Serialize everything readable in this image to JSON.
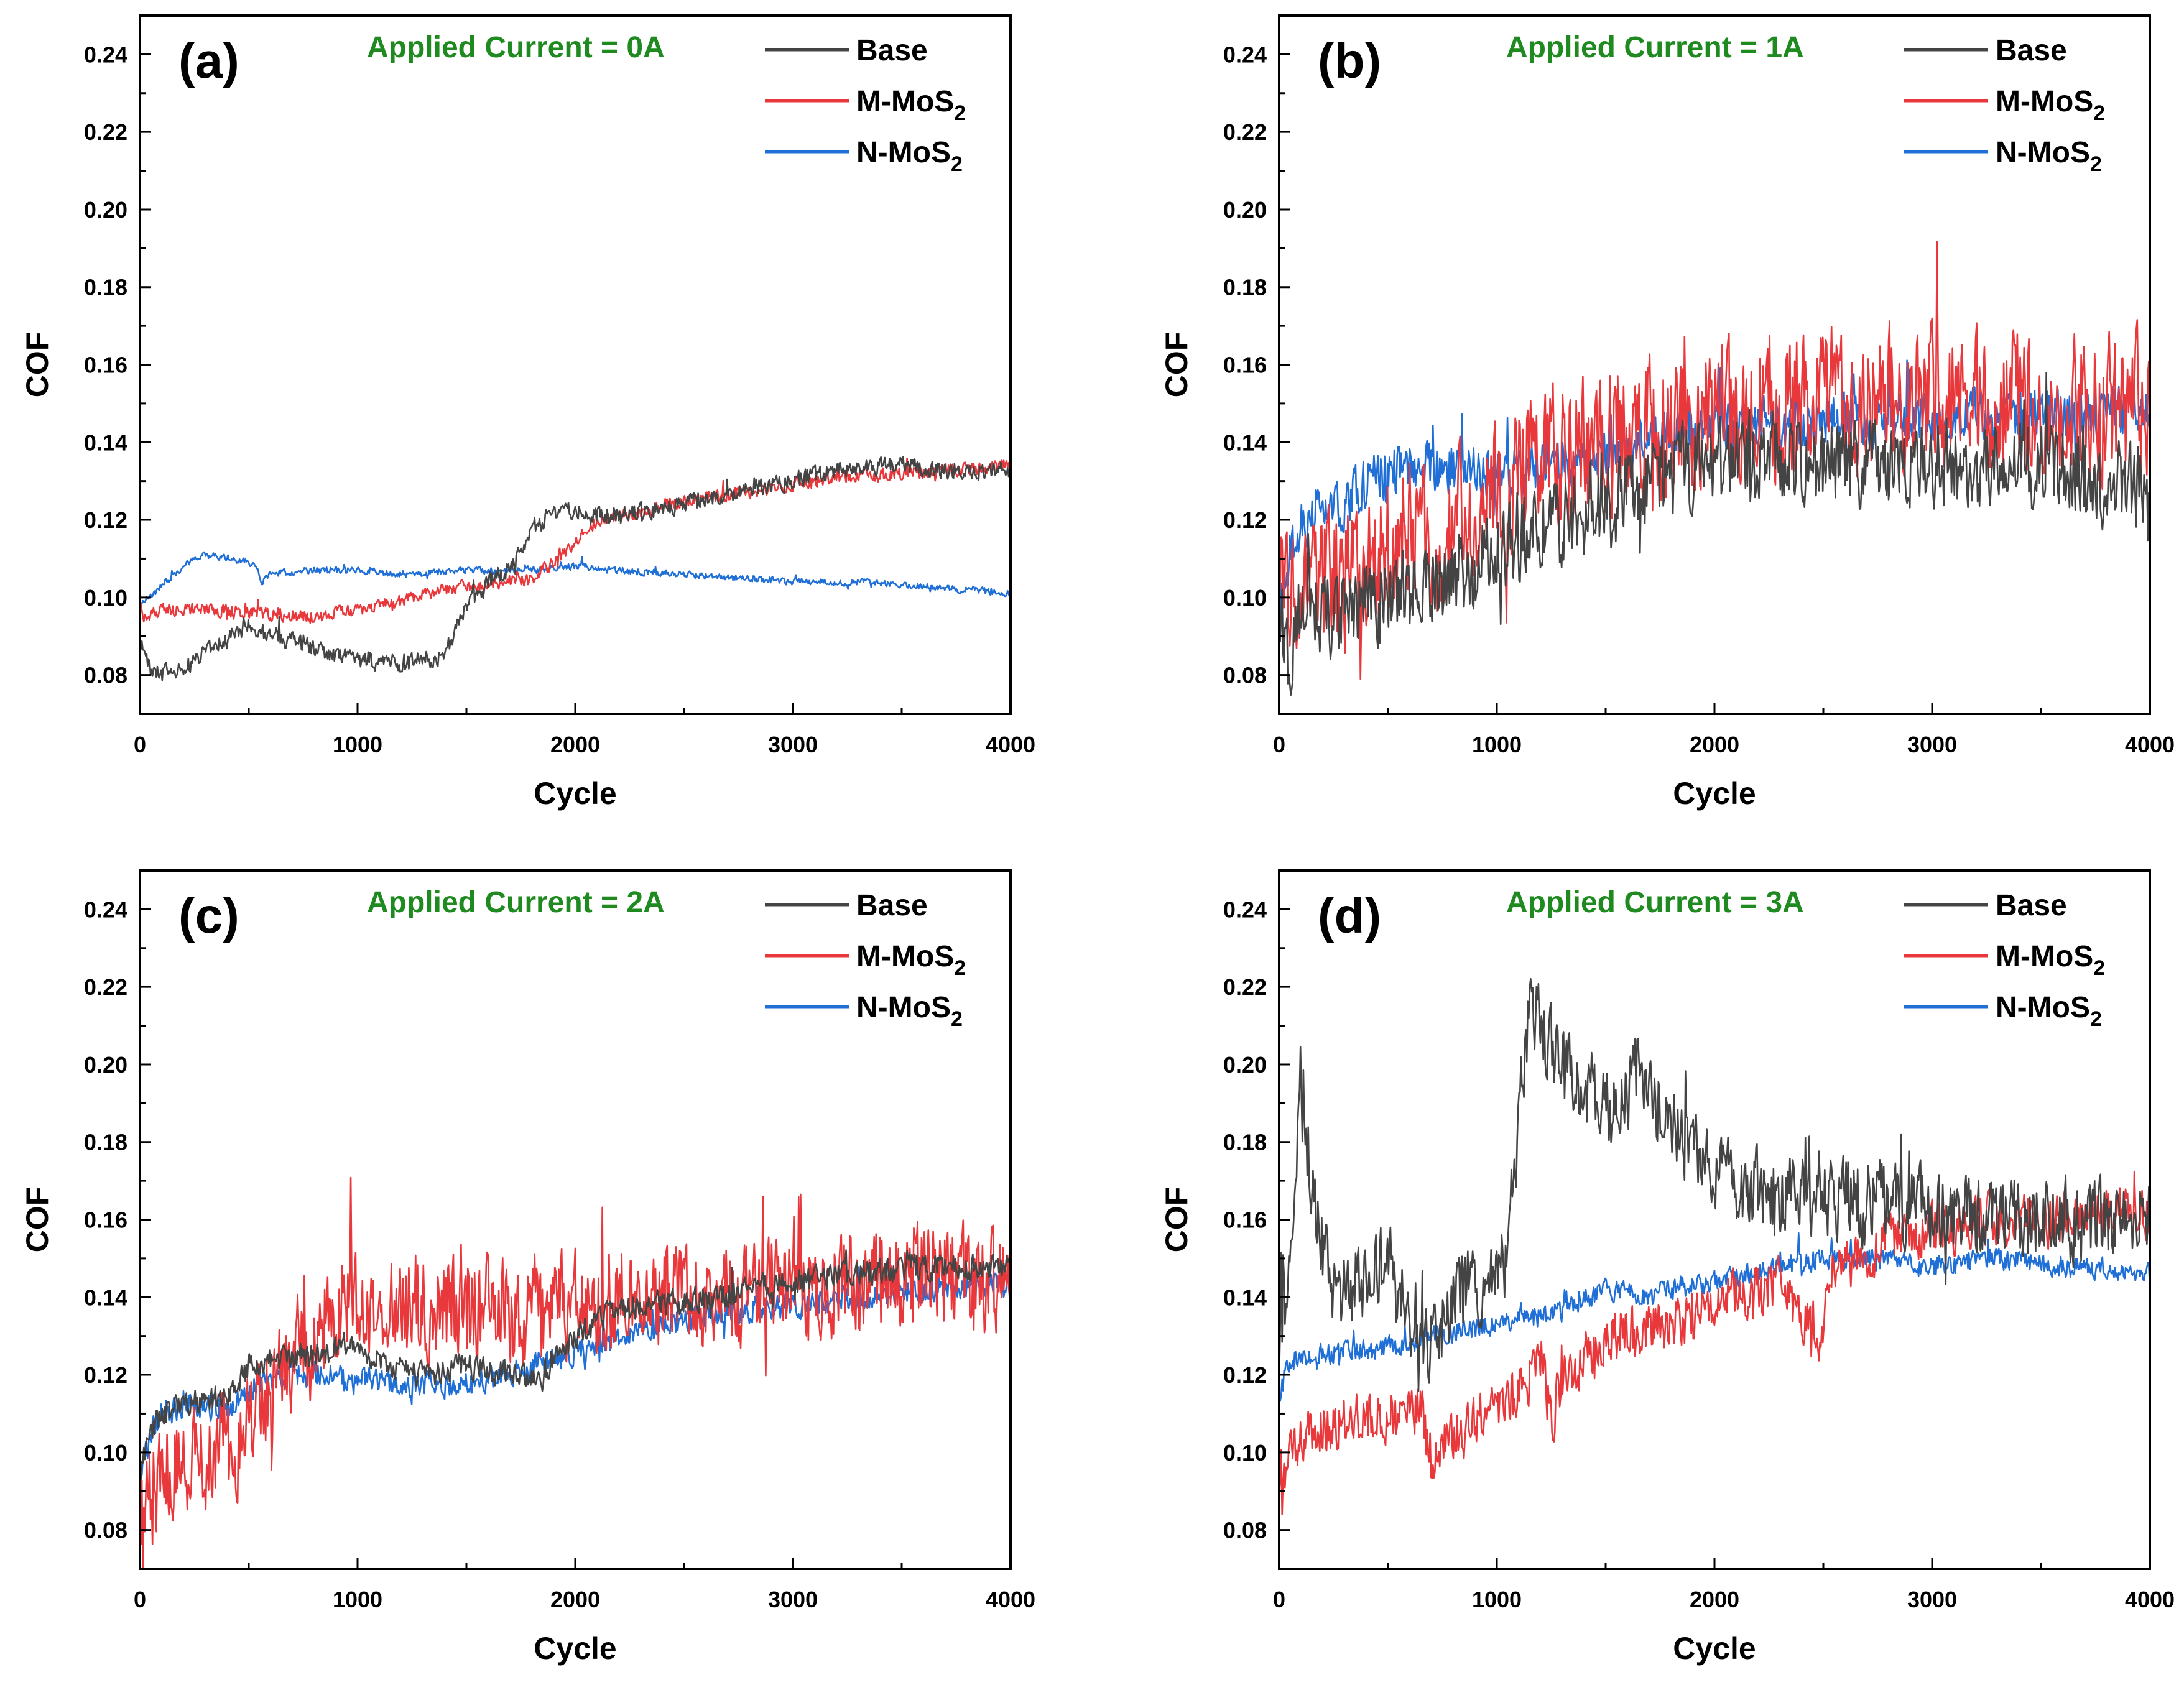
{
  "figure": {
    "series_colors": {
      "Base": "#444444",
      "M-MoS2": "#e8383b",
      "N-MoS2": "#1f6fd6"
    },
    "annotation_color": "#1f8a1f"
  },
  "chart_data": [
    {
      "id": "a",
      "type": "line",
      "panel_label": "(a)",
      "annotation": "Applied Current = 0A",
      "xlabel": "Cycle",
      "ylabel": "COF",
      "xlim": [
        0,
        4000
      ],
      "ylim": [
        0.07,
        0.25
      ],
      "xticks": [
        0,
        1000,
        2000,
        3000,
        4000
      ],
      "yticks": [
        0.08,
        0.1,
        0.12,
        0.14,
        0.16,
        0.18,
        0.2,
        0.22,
        0.24
      ],
      "legend": [
        {
          "name": "Base",
          "main": "Base",
          "sub": ""
        },
        {
          "name": "M-MoS2",
          "main": "M-MoS",
          "sub": "2"
        },
        {
          "name": "N-MoS2",
          "main": "N-MoS",
          "sub": "2"
        }
      ],
      "series": [
        {
          "name": "Base",
          "noise": 0.002,
          "x": [
            0,
            60,
            200,
            350,
            500,
            600,
            800,
            1000,
            1200,
            1400,
            1500,
            1600,
            1700,
            1800,
            1900,
            2000,
            2100,
            2300,
            2500,
            2800,
            3000,
            3200,
            3500,
            3800,
            4000
          ],
          "y": [
            0.088,
            0.08,
            0.082,
            0.088,
            0.093,
            0.09,
            0.087,
            0.084,
            0.083,
            0.085,
            0.098,
            0.104,
            0.108,
            0.118,
            0.122,
            0.122,
            0.121,
            0.122,
            0.124,
            0.128,
            0.13,
            0.133,
            0.134,
            0.132,
            0.133
          ]
        },
        {
          "name": "M-MoS2",
          "noise": 0.0015,
          "x": [
            0,
            30,
            100,
            300,
            500,
            800,
            1000,
            1200,
            1400,
            1600,
            1800,
            1900,
            2000,
            2100,
            2300,
            2500,
            2800,
            3000,
            3200,
            3500,
            3800,
            4000
          ],
          "y": [
            0.097,
            0.094,
            0.097,
            0.097,
            0.096,
            0.095,
            0.097,
            0.099,
            0.102,
            0.103,
            0.105,
            0.109,
            0.114,
            0.12,
            0.122,
            0.125,
            0.127,
            0.129,
            0.131,
            0.132,
            0.133,
            0.134
          ]
        },
        {
          "name": "N-MoS2",
          "noise": 0.0008,
          "x": [
            0,
            30,
            100,
            200,
            300,
            400,
            500,
            540,
            560,
            600,
            800,
            1000,
            1200,
            1500,
            1800,
            2000,
            2200,
            2500,
            2800,
            3000,
            3300,
            3600,
            4000
          ],
          "y": [
            0.098,
            0.1,
            0.103,
            0.108,
            0.111,
            0.11,
            0.109,
            0.108,
            0.104,
            0.106,
            0.107,
            0.107,
            0.106,
            0.107,
            0.107,
            0.108,
            0.107,
            0.106,
            0.105,
            0.104,
            0.104,
            0.103,
            0.101
          ]
        }
      ]
    },
    {
      "id": "b",
      "type": "line",
      "panel_label": "(b)",
      "annotation": "Applied Current = 1A",
      "xlabel": "Cycle",
      "ylabel": "COF",
      "xlim": [
        0,
        4000
      ],
      "ylim": [
        0.07,
        0.25
      ],
      "xticks": [
        0,
        1000,
        2000,
        3000,
        4000
      ],
      "yticks": [
        0.08,
        0.1,
        0.12,
        0.14,
        0.16,
        0.18,
        0.2,
        0.22,
        0.24
      ],
      "legend": [
        {
          "name": "Base",
          "main": "Base",
          "sub": ""
        },
        {
          "name": "M-MoS2",
          "main": "M-MoS",
          "sub": "2"
        },
        {
          "name": "N-MoS2",
          "main": "N-MoS",
          "sub": "2"
        }
      ],
      "series": [
        {
          "name": "Base",
          "noise": 0.01,
          "x": [
            0,
            40,
            100,
            300,
            500,
            700,
            900,
            1100,
            1300,
            1500,
            1700,
            1900,
            2100,
            2400,
            2700,
            3000,
            3300,
            3600,
            4000
          ],
          "y": [
            0.095,
            0.085,
            0.095,
            0.097,
            0.1,
            0.103,
            0.108,
            0.115,
            0.12,
            0.125,
            0.13,
            0.133,
            0.135,
            0.136,
            0.134,
            0.135,
            0.134,
            0.133,
            0.128
          ]
        },
        {
          "name": "M-MoS2",
          "noise": 0.016,
          "x": [
            0,
            40,
            100,
            300,
            500,
            600,
            700,
            900,
            1100,
            1300,
            1500,
            1800,
            2000,
            2300,
            2600,
            2800,
            3000,
            3300,
            3600,
            4000
          ],
          "y": [
            0.098,
            0.1,
            0.103,
            0.105,
            0.112,
            0.118,
            0.112,
            0.125,
            0.132,
            0.138,
            0.142,
            0.145,
            0.147,
            0.148,
            0.15,
            0.152,
            0.151,
            0.15,
            0.149,
            0.15
          ]
        },
        {
          "name": "N-MoS2",
          "noise": 0.006,
          "x": [
            0,
            40,
            100,
            200,
            300,
            400,
            500,
            700,
            900,
            1100,
            1300,
            1500,
            1800,
            2000,
            2300,
            2600,
            3000,
            3400,
            4000
          ],
          "y": [
            0.1,
            0.11,
            0.118,
            0.126,
            0.124,
            0.13,
            0.132,
            0.134,
            0.133,
            0.132,
            0.135,
            0.138,
            0.142,
            0.144,
            0.145,
            0.146,
            0.147,
            0.147,
            0.148
          ]
        }
      ]
    },
    {
      "id": "c",
      "type": "line",
      "panel_label": "(c)",
      "annotation": "Applied Current = 2A",
      "xlabel": "Cycle",
      "ylabel": "COF",
      "xlim": [
        0,
        4000
      ],
      "ylim": [
        0.07,
        0.25
      ],
      "xticks": [
        0,
        1000,
        2000,
        3000,
        4000
      ],
      "yticks": [
        0.08,
        0.1,
        0.12,
        0.14,
        0.16,
        0.18,
        0.2,
        0.22,
        0.24
      ],
      "legend": [
        {
          "name": "Base",
          "main": "Base",
          "sub": ""
        },
        {
          "name": "M-MoS2",
          "main": "M-MoS",
          "sub": "2"
        },
        {
          "name": "N-MoS2",
          "main": "N-MoS",
          "sub": "2"
        }
      ],
      "series": [
        {
          "name": "Base",
          "noise": 0.003,
          "x": [
            0,
            50,
            100,
            200,
            400,
            500,
            600,
            800,
            1000,
            1100,
            1300,
            1500,
            1700,
            1850,
            1900,
            2000,
            2200,
            2500,
            2800,
            3000,
            3300,
            3600,
            4000
          ],
          "y": [
            0.095,
            0.105,
            0.11,
            0.112,
            0.115,
            0.122,
            0.124,
            0.125,
            0.128,
            0.123,
            0.12,
            0.122,
            0.12,
            0.118,
            0.126,
            0.13,
            0.137,
            0.139,
            0.142,
            0.144,
            0.146,
            0.148,
            0.148
          ]
        },
        {
          "name": "M-MoS2",
          "noise": 0.012,
          "x": [
            0,
            40,
            100,
            200,
            300,
            450,
            600,
            750,
            900,
            1100,
            1300,
            1500,
            1700,
            1900,
            2100,
            2300,
            2600,
            2900,
            3200,
            3400,
            3700,
            4000
          ],
          "y": [
            0.075,
            0.088,
            0.094,
            0.098,
            0.1,
            0.103,
            0.118,
            0.128,
            0.136,
            0.138,
            0.138,
            0.136,
            0.137,
            0.137,
            0.138,
            0.14,
            0.141,
            0.142,
            0.143,
            0.146,
            0.145,
            0.142
          ]
        },
        {
          "name": "N-MoS2",
          "noise": 0.003,
          "x": [
            0,
            50,
            100,
            200,
            400,
            500,
            700,
            900,
            1100,
            1300,
            1500,
            1700,
            1900,
            2100,
            2400,
            2700,
            3000,
            3300,
            3600,
            4000
          ],
          "y": [
            0.095,
            0.105,
            0.11,
            0.112,
            0.112,
            0.116,
            0.12,
            0.12,
            0.118,
            0.117,
            0.118,
            0.12,
            0.124,
            0.128,
            0.133,
            0.136,
            0.138,
            0.14,
            0.142,
            0.144
          ]
        }
      ]
    },
    {
      "id": "d",
      "type": "line",
      "panel_label": "(d)",
      "annotation": "Applied Current = 3A",
      "xlabel": "Cycle",
      "ylabel": "COF",
      "xlim": [
        0,
        4000
      ],
      "ylim": [
        0.07,
        0.25
      ],
      "xticks": [
        0,
        1000,
        2000,
        3000,
        4000
      ],
      "yticks": [
        0.08,
        0.1,
        0.12,
        0.14,
        0.16,
        0.18,
        0.2,
        0.22,
        0.24
      ],
      "legend": [
        {
          "name": "Base",
          "main": "Base",
          "sub": ""
        },
        {
          "name": "M-MoS2",
          "main": "M-MoS",
          "sub": "2"
        },
        {
          "name": "N-MoS2",
          "main": "N-MoS",
          "sub": "2"
        }
      ],
      "series": [
        {
          "name": "Base",
          "noise": 0.009,
          "x": [
            0,
            50,
            100,
            150,
            250,
            400,
            500,
            600,
            700,
            800,
            950,
            1050,
            1100,
            1150,
            1250,
            1400,
            1500,
            1600,
            1650,
            1800,
            2000,
            2200,
            2500,
            2800,
            3100,
            3400,
            3700,
            4000
          ],
          "y": [
            0.125,
            0.15,
            0.2,
            0.165,
            0.14,
            0.145,
            0.15,
            0.13,
            0.128,
            0.14,
            0.145,
            0.15,
            0.185,
            0.215,
            0.205,
            0.195,
            0.188,
            0.192,
            0.2,
            0.182,
            0.172,
            0.168,
            0.166,
            0.164,
            0.162,
            0.16,
            0.159,
            0.16
          ]
        },
        {
          "name": "M-MoS2",
          "noise": 0.006,
          "x": [
            0,
            50,
            100,
            300,
            500,
            650,
            700,
            900,
            1100,
            1200,
            1250,
            1300,
            1500,
            1700,
            1900,
            2100,
            2300,
            2500,
            2520,
            2800,
            3000,
            3300,
            3600,
            3900,
            4000
          ],
          "y": [
            0.085,
            0.1,
            0.105,
            0.108,
            0.11,
            0.112,
            0.098,
            0.108,
            0.115,
            0.125,
            0.108,
            0.118,
            0.13,
            0.132,
            0.135,
            0.14,
            0.143,
            0.13,
            0.145,
            0.155,
            0.158,
            0.16,
            0.16,
            0.162,
            0.16
          ]
        },
        {
          "name": "N-MoS2",
          "noise": 0.0025,
          "x": [
            0,
            50,
            100,
            300,
            500,
            700,
            900,
            1100,
            1300,
            1500,
            1700,
            1900,
            2100,
            2300,
            2500,
            2700,
            3000,
            3300,
            3600,
            4000
          ],
          "y": [
            0.115,
            0.124,
            0.125,
            0.126,
            0.127,
            0.13,
            0.132,
            0.134,
            0.136,
            0.142,
            0.14,
            0.143,
            0.145,
            0.148,
            0.15,
            0.15,
            0.148,
            0.15,
            0.148,
            0.146
          ]
        }
      ]
    }
  ]
}
